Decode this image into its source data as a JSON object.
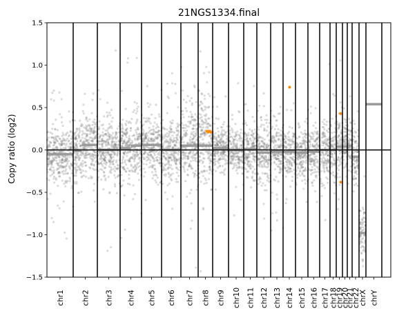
{
  "chart_data": {
    "type": "scatter",
    "title": "21NGS1334.final",
    "ylabel": "Copy ratio (log2)",
    "xlabel": "",
    "ylim": [
      -1.5,
      1.5
    ],
    "yticks": [
      1.5,
      1.0,
      0.5,
      0.0,
      -0.5,
      -1.0,
      -1.5
    ],
    "ytick_labels": [
      "1.5",
      "1.0",
      "0.5",
      "0.0",
      "−0.5",
      "−1.0",
      "−1.5"
    ],
    "grid": false,
    "legend": "none",
    "baseline": 0.0,
    "colors": {
      "bins": "#7f7f7f",
      "segments": "#9a9a9a",
      "highlight": "#ff8c00",
      "axis": "#000000"
    },
    "chromosomes": [
      {
        "name": "chr1",
        "segments": [
          [
            0.0,
            1.0,
            -0.05
          ]
        ],
        "highlights": []
      },
      {
        "name": "chr2",
        "segments": [
          [
            0.0,
            0.35,
            -0.01
          ],
          [
            0.35,
            1.0,
            0.06
          ]
        ],
        "highlights": []
      },
      {
        "name": "chr3",
        "segments": [
          [
            0.0,
            1.0,
            0.0
          ]
        ],
        "highlights": []
      },
      {
        "name": "chr4",
        "segments": [
          [
            0.0,
            0.5,
            0.02
          ],
          [
            0.5,
            1.0,
            0.05
          ]
        ],
        "highlights": []
      },
      {
        "name": "chr5",
        "segments": [
          [
            0.0,
            1.0,
            0.06
          ]
        ],
        "highlights": []
      },
      {
        "name": "chr6",
        "segments": [
          [
            0.0,
            1.0,
            0.0
          ]
        ],
        "highlights": []
      },
      {
        "name": "chr7",
        "segments": [
          [
            0.0,
            1.0,
            0.05
          ]
        ],
        "highlights": []
      },
      {
        "name": "chr8",
        "segments": [
          [
            0.0,
            1.0,
            0.05
          ]
        ],
        "highlights": [
          [
            0.6,
            0.22
          ],
          [
            0.68,
            0.21
          ],
          [
            0.75,
            0.22
          ],
          [
            0.82,
            0.22
          ],
          [
            0.88,
            0.21
          ]
        ]
      },
      {
        "name": "chr9",
        "segments": [
          [
            0.0,
            1.0,
            0.02
          ]
        ],
        "highlights": []
      },
      {
        "name": "chr10",
        "segments": [
          [
            0.0,
            1.0,
            0.0
          ]
        ],
        "highlights": []
      },
      {
        "name": "chr11",
        "segments": [
          [
            0.0,
            1.0,
            0.01
          ]
        ],
        "highlights": []
      },
      {
        "name": "chr12",
        "segments": [
          [
            0.0,
            1.0,
            -0.03
          ]
        ],
        "highlights": []
      },
      {
        "name": "chr13",
        "segments": [
          [
            0.0,
            1.0,
            -0.02
          ]
        ],
        "highlights": []
      },
      {
        "name": "chr14",
        "segments": [
          [
            0.0,
            1.0,
            -0.02
          ]
        ],
        "highlights": [
          [
            0.52,
            0.74
          ]
        ]
      },
      {
        "name": "chr15",
        "segments": [
          [
            0.0,
            1.0,
            -0.03
          ]
        ],
        "highlights": []
      },
      {
        "name": "chr16",
        "segments": [
          [
            0.0,
            1.0,
            -0.02
          ]
        ],
        "highlights": []
      },
      {
        "name": "chr17",
        "segments": [
          [
            0.0,
            1.0,
            0.0
          ]
        ],
        "highlights": []
      },
      {
        "name": "chr18",
        "segments": [
          [
            0.0,
            1.0,
            0.0
          ]
        ],
        "highlights": []
      },
      {
        "name": "chr19",
        "segments": [
          [
            0.0,
            1.0,
            0.04
          ]
        ],
        "highlights": [
          [
            0.7,
            0.43
          ],
          [
            0.72,
            -0.38
          ]
        ]
      },
      {
        "name": "chr20",
        "segments": [
          [
            0.0,
            1.0,
            0.04
          ]
        ],
        "highlights": []
      },
      {
        "name": "chr21",
        "segments": [
          [
            0.0,
            1.0,
            0.05
          ]
        ],
        "highlights": []
      },
      {
        "name": "chr22",
        "segments": [
          [
            0.0,
            1.0,
            -0.08
          ]
        ],
        "highlights": []
      },
      {
        "name": "chrX",
        "segments": [
          [
            0.0,
            1.0,
            -0.98
          ]
        ],
        "highlights": []
      },
      {
        "name": "chrY",
        "segments": [
          [
            0.0,
            1.0,
            0.54
          ]
        ],
        "highlights": []
      }
    ]
  }
}
